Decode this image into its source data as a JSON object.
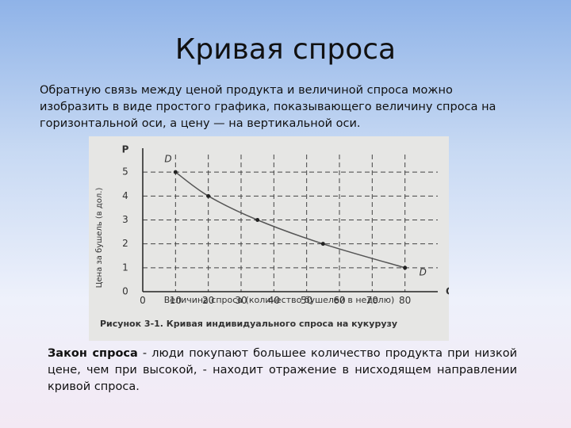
{
  "title": "Кривая спроса",
  "intro": "Обратную связь между ценой продукта и величиной спроса можно изобразить в виде простого графика, показывающего величину спроса на горизонтальной оси, а цену — на вертикальной оси.",
  "chart_data": {
    "type": "line",
    "caption": "Рисунок 3-1. Кривая индивидуального спроса на кукурузу",
    "x_label": "Величина спроса (количество бушелей в неделю)",
    "y_label": "Цена за бушель (в дол.)",
    "x_axis_name": "Q",
    "y_axis_name": "P",
    "xlim": [
      0,
      90
    ],
    "ylim": [
      0,
      6
    ],
    "xticks": [
      0,
      10,
      20,
      30,
      40,
      50,
      60,
      70,
      80
    ],
    "yticks": [
      0,
      1,
      2,
      3,
      4,
      5
    ],
    "grid": true,
    "series": [
      {
        "name": "D",
        "color": "#555555",
        "x": [
          10,
          20,
          35,
          55,
          80
        ],
        "values": [
          5,
          4,
          3,
          2,
          1
        ]
      }
    ]
  },
  "law": {
    "term": "Закон спроса",
    "text": "- люди покупают большее количество продукта при низкой цене, чем при высокой, - находит отражение в нисходящем направлении кривой спроса."
  }
}
